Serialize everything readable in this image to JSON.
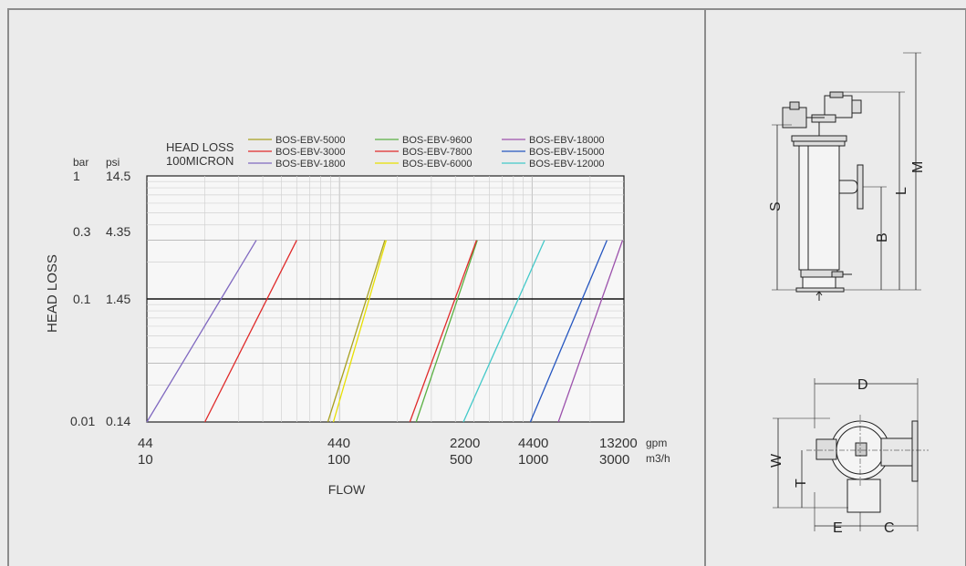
{
  "chart_data": {
    "type": "line",
    "title": "HEAD LOSS",
    "subtitle": "100MICRON",
    "ylabel": "HEAD LOSS",
    "xlabel": "FLOW",
    "y_unit_bar": "bar",
    "y_unit_psi": "psi",
    "x_unit_gpm": "gpm",
    "x_unit_m3h": "m3/h",
    "x_scale": "log",
    "y_scale": "log",
    "xlim_m3h": [
      10,
      3000
    ],
    "ylim_bar": [
      0.01,
      1
    ],
    "y_ticks": [
      {
        "bar": "1",
        "psi": "14.5"
      },
      {
        "bar": "0.3",
        "psi": "4.35"
      },
      {
        "bar": "0.1",
        "psi": "1.45"
      },
      {
        "bar": "0.01",
        "psi": "0.14"
      }
    ],
    "x_ticks": [
      {
        "gpm": "44",
        "m3h": "10"
      },
      {
        "gpm": "440",
        "m3h": "100"
      },
      {
        "gpm": "2200",
        "m3h": "500"
      },
      {
        "gpm": "4400",
        "m3h": "1000"
      },
      {
        "gpm": "13200",
        "m3h": "3000"
      }
    ],
    "legend_placement": "top",
    "series": [
      {
        "name": "BOS-EBV-5000",
        "color": "#a8a020",
        "x": [
          87,
          172
        ],
        "y": [
          0.01,
          0.3
        ]
      },
      {
        "name": "BOS-EBV-9600",
        "color": "#5ab043",
        "x": [
          250,
          520
        ],
        "y": [
          0.01,
          0.3
        ]
      },
      {
        "name": "BOS-EBV-18000",
        "color": "#9c52ac",
        "x": [
          1370,
          2950
        ],
        "y": [
          0.01,
          0.3
        ]
      },
      {
        "name": "BOS-EBV-3000",
        "color": "#e02a2a",
        "x": [
          20,
          60
        ],
        "y": [
          0.01,
          0.3
        ]
      },
      {
        "name": "BOS-EBV-7800",
        "color": "#e02a2a",
        "x": [
          232,
          515
        ],
        "y": [
          0.01,
          0.3
        ]
      },
      {
        "name": "BOS-EBV-15000",
        "color": "#2556c0",
        "x": [
          980,
          2450
        ],
        "y": [
          0.01,
          0.3
        ]
      },
      {
        "name": "BOS-EBV-1800",
        "color": "#8069c0",
        "x": [
          10,
          37
        ],
        "y": [
          0.01,
          0.3
        ]
      },
      {
        "name": "BOS-EBV-6000",
        "color": "#e8e000",
        "x": [
          93,
          175
        ],
        "y": [
          0.01,
          0.3
        ]
      },
      {
        "name": "BOS-EBV-12000",
        "color": "#43c9c9",
        "x": [
          440,
          1160
        ],
        "y": [
          0.01,
          0.3
        ]
      }
    ]
  },
  "diagram": {
    "side_view_labels": [
      "S",
      "B",
      "L",
      "M"
    ],
    "top_view_labels": [
      "D",
      "W",
      "T",
      "E",
      "C"
    ]
  }
}
